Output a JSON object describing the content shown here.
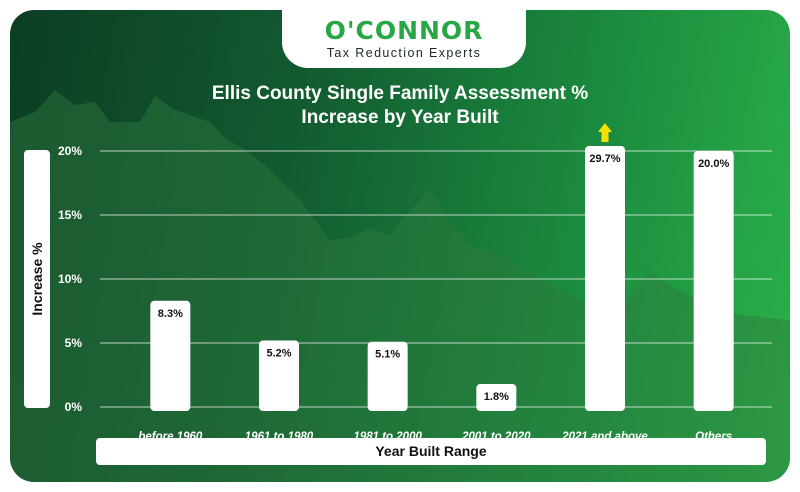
{
  "brand": {
    "name": "O'CONNOR",
    "tagline": "Tax Reduction Experts"
  },
  "chart_data": {
    "type": "bar",
    "title": "Ellis County Single Family Assessment % Increase by Year Built",
    "xlabel": "Year Built Range",
    "ylabel": "Increase %",
    "categories": [
      "before 1960",
      "1961 to 1980",
      "1981 to 2000",
      "2001 to 2020",
      "2021 and above",
      "Others"
    ],
    "values": [
      8.3,
      5.2,
      5.1,
      1.8,
      29.7,
      20.0
    ],
    "data_labels": [
      "8.3%",
      "5.2%",
      "5.1%",
      "1.8%",
      "29.7%",
      "20.0%"
    ],
    "ylim": [
      0,
      20
    ],
    "yticks": [
      0,
      5,
      10,
      15,
      20
    ],
    "ytick_labels": [
      "0%",
      "5%",
      "10%",
      "15%",
      "20%"
    ],
    "grid": true,
    "overflow_marker": "yellow up-arrow above 2021 and above bar (value exceeds axis)",
    "colors": {
      "bar": "#ffffff",
      "overflow_arrow": "#f5e100",
      "grid": "#ffffff",
      "text": "#ffffff"
    }
  }
}
